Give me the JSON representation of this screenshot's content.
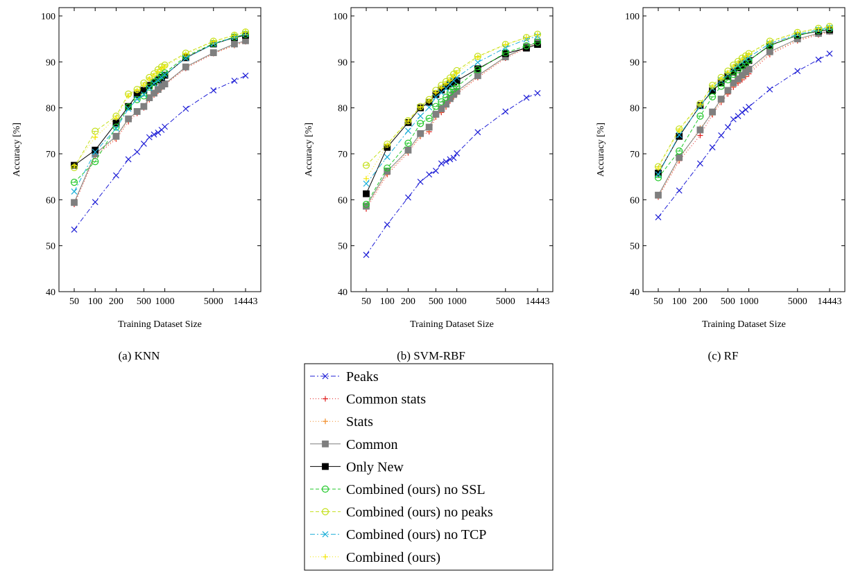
{
  "x_tick_labels": [
    "50",
    "100",
    "200",
    "500",
    "1000",
    "5000",
    "14443"
  ],
  "y_tick_labels": [
    "40",
    "50",
    "60",
    "70",
    "80",
    "90",
    "100"
  ],
  "chart_data": [
    {
      "type": "line",
      "caption": "(a) KNN",
      "xlabel": "Training Dataset Size",
      "ylabel": "Accuracy [%]",
      "xscale": "log",
      "xlim": [
        50,
        14443
      ],
      "ylim": [
        40,
        100
      ],
      "grid": true,
      "x": [
        50,
        100,
        200,
        300,
        400,
        500,
        600,
        700,
        800,
        900,
        1000,
        2000,
        5000,
        10000,
        14443
      ],
      "series": [
        {
          "name": "Peaks",
          "values": [
            53.5,
            59.5,
            65.3,
            68.8,
            70.4,
            72.2,
            73.6,
            74.2,
            74.6,
            75.2,
            75.9,
            79.8,
            83.8,
            85.9,
            87.0
          ]
        },
        {
          "name": "Common stats",
          "values": [
            59.0,
            69.5,
            73.2,
            77.0,
            78.8,
            80.0,
            81.8,
            82.8,
            83.6,
            84.4,
            85.0,
            88.6,
            91.8,
            93.6,
            94.4
          ]
        },
        {
          "name": "Stats",
          "values": [
            59.3,
            69.8,
            73.5,
            77.4,
            79.1,
            80.2,
            82.0,
            83.0,
            83.8,
            84.5,
            85.1,
            88.8,
            91.9,
            93.7,
            94.5
          ]
        },
        {
          "name": "Common",
          "values": [
            59.4,
            70.0,
            73.8,
            77.6,
            79.2,
            80.3,
            82.2,
            83.2,
            84.0,
            84.7,
            85.2,
            88.9,
            92.0,
            93.9,
            94.6
          ]
        },
        {
          "name": "Only New",
          "values": [
            67.5,
            70.8,
            76.7,
            80.3,
            82.9,
            83.8,
            84.9,
            85.6,
            86.1,
            86.6,
            87.1,
            90.9,
            93.9,
            95.3,
            95.8
          ]
        },
        {
          "name": "Combined (ours) no SSL",
          "values": [
            63.8,
            68.3,
            75.8,
            80.2,
            81.8,
            82.6,
            84.5,
            85.5,
            86.4,
            87.0,
            87.6,
            91.2,
            94.0,
            95.4,
            96.0
          ]
        },
        {
          "name": "Combined (ours) no peaks",
          "values": [
            67.0,
            74.9,
            78.2,
            83.0,
            84.0,
            85.4,
            86.6,
            87.4,
            88.3,
            88.9,
            89.3,
            91.9,
            94.5,
            95.8,
            96.5
          ]
        },
        {
          "name": "Combined (ours) no TCP",
          "values": [
            61.8,
            70.4,
            75.5,
            79.8,
            81.9,
            82.9,
            84.3,
            85.3,
            86.0,
            86.6,
            87.2,
            90.8,
            93.9,
            95.4,
            96.1
          ]
        },
        {
          "name": "Combined (ours)",
          "values": [
            67.4,
            73.6,
            77.8,
            82.6,
            83.8,
            85.0,
            86.3,
            87.1,
            87.9,
            88.6,
            89.0,
            91.7,
            94.4,
            95.8,
            96.5
          ]
        }
      ]
    },
    {
      "type": "line",
      "caption": "(b) SVM-RBF",
      "xlabel": "Training Dataset Size",
      "ylabel": "Accuracy [%]",
      "xscale": "log",
      "xlim": [
        50,
        14443
      ],
      "ylim": [
        40,
        100
      ],
      "grid": true,
      "x": [
        50,
        100,
        200,
        300,
        400,
        500,
        600,
        700,
        800,
        900,
        1000,
        2000,
        5000,
        10000,
        14443
      ],
      "series": [
        {
          "name": "Peaks",
          "values": [
            48.0,
            54.6,
            60.5,
            63.9,
            65.5,
            66.3,
            67.9,
            68.3,
            68.8,
            69.1,
            70.1,
            74.7,
            79.2,
            82.2,
            83.2
          ]
        },
        {
          "name": "Common stats",
          "values": [
            58.0,
            65.5,
            70.2,
            73.8,
            74.8,
            78.0,
            79.0,
            80.2,
            81.5,
            82.4,
            83.0,
            86.6,
            90.8,
            93.0,
            94.0
          ]
        },
        {
          "name": "Stats",
          "values": [
            58.4,
            65.8,
            70.5,
            74.0,
            75.2,
            78.3,
            79.4,
            80.5,
            81.8,
            82.6,
            83.2,
            86.8,
            91.0,
            93.2,
            94.2
          ]
        },
        {
          "name": "Common",
          "values": [
            58.6,
            66.2,
            70.8,
            74.4,
            75.8,
            78.6,
            79.8,
            80.8,
            82.0,
            82.9,
            83.6,
            87.0,
            91.1,
            93.3,
            94.3
          ]
        },
        {
          "name": "Only New",
          "values": [
            61.3,
            71.4,
            76.8,
            80.0,
            81.2,
            82.9,
            83.9,
            84.7,
            85.2,
            85.6,
            85.9,
            88.5,
            91.8,
            93.0,
            93.8
          ]
        },
        {
          "name": "Combined (ours) no SSL",
          "values": [
            59.0,
            66.9,
            72.3,
            76.6,
            77.7,
            80.3,
            81.3,
            82.3,
            83.4,
            84.1,
            84.6,
            88.3,
            92.0,
            93.5,
            94.3
          ]
        },
        {
          "name": "Combined (ours) no peaks",
          "values": [
            67.5,
            72.1,
            77.2,
            80.3,
            81.8,
            83.8,
            84.9,
            85.7,
            86.5,
            87.3,
            88.1,
            91.2,
            93.8,
            95.3,
            96.0
          ]
        },
        {
          "name": "Combined (ours) no TCP",
          "values": [
            63.5,
            69.3,
            75.0,
            78.2,
            80.1,
            82.3,
            83.3,
            84.2,
            85.1,
            85.9,
            86.6,
            89.9,
            93.1,
            94.9,
            95.6
          ]
        },
        {
          "name": "Combined (ours)",
          "values": [
            64.6,
            71.9,
            77.1,
            80.1,
            81.5,
            83.3,
            84.4,
            85.3,
            86.1,
            86.9,
            87.6,
            91.0,
            93.7,
            95.3,
            95.9
          ]
        }
      ]
    },
    {
      "type": "line",
      "caption": "(c) RF",
      "xlabel": "Training Dataset Size",
      "ylabel": "Accuracy [%]",
      "xscale": "log",
      "xlim": [
        50,
        14443
      ],
      "ylim": [
        40,
        100
      ],
      "grid": true,
      "x": [
        50,
        100,
        200,
        300,
        400,
        500,
        600,
        700,
        800,
        900,
        1000,
        2000,
        5000,
        10000,
        14443
      ],
      "series": [
        {
          "name": "Peaks",
          "values": [
            56.2,
            62.0,
            67.9,
            71.4,
            74.0,
            75.8,
            77.5,
            78.2,
            79.0,
            79.6,
            80.2,
            84.0,
            88.0,
            90.5,
            91.8
          ]
        },
        {
          "name": "Common stats",
          "values": [
            60.6,
            68.5,
            74.0,
            78.5,
            81.2,
            83.0,
            84.5,
            85.4,
            86.1,
            86.8,
            87.4,
            91.6,
            94.6,
            95.9,
            96.5
          ]
        },
        {
          "name": "Stats",
          "values": [
            60.8,
            68.8,
            75.6,
            78.8,
            81.6,
            83.5,
            85.0,
            85.9,
            86.6,
            87.3,
            87.9,
            91.9,
            94.8,
            96.1,
            96.6
          ]
        },
        {
          "name": "Common",
          "values": [
            61.0,
            69.2,
            75.2,
            79.1,
            81.9,
            83.8,
            85.4,
            86.3,
            87.1,
            87.8,
            88.4,
            92.2,
            95.0,
            96.2,
            96.7
          ]
        },
        {
          "name": "Only New",
          "values": [
            65.8,
            73.8,
            80.5,
            83.7,
            85.5,
            86.9,
            87.8,
            88.7,
            89.3,
            89.9,
            90.3,
            93.6,
            95.8,
            96.7,
            97.0
          ]
        },
        {
          "name": "Combined (ours) no SSL",
          "values": [
            64.8,
            70.6,
            78.2,
            82.4,
            84.7,
            86.1,
            87.3,
            88.3,
            89.1,
            89.7,
            90.3,
            93.5,
            95.8,
            96.8,
            97.2
          ]
        },
        {
          "name": "Combined (ours) no peaks",
          "values": [
            67.2,
            75.4,
            80.9,
            84.9,
            86.6,
            88.0,
            89.3,
            90.1,
            90.8,
            91.3,
            91.8,
            94.5,
            96.4,
            97.3,
            97.7
          ]
        },
        {
          "name": "Combined (ours) no TCP",
          "values": [
            65.5,
            74.1,
            80.3,
            84.2,
            86.0,
            87.3,
            88.5,
            89.3,
            90.0,
            90.6,
            91.0,
            94.0,
            96.0,
            97.0,
            97.4
          ]
        },
        {
          "name": "Combined (ours)",
          "values": [
            66.9,
            75.1,
            80.7,
            84.6,
            86.3,
            87.7,
            89.0,
            89.8,
            90.5,
            91.1,
            91.6,
            94.3,
            96.3,
            97.2,
            97.6
          ]
        }
      ]
    }
  ],
  "styles": [
    {
      "color": "#1f1fd6",
      "dash": "7,3,2,3",
      "marker": "x"
    },
    {
      "color": "#e01b1b",
      "dash": "1,3",
      "marker": "plus"
    },
    {
      "color": "#f08a24",
      "dash": "1,3",
      "marker": "plus"
    },
    {
      "color": "#7f7f7f",
      "dash": "",
      "marker": "square"
    },
    {
      "color": "#000000",
      "dash": "",
      "marker": "square"
    },
    {
      "color": "#22c92a",
      "dash": "5,3",
      "marker": "circle"
    },
    {
      "color": "#c4e01b",
      "dash": "5,3",
      "marker": "circle"
    },
    {
      "color": "#1aaed8",
      "dash": "7,3,2,3",
      "marker": "x"
    },
    {
      "color": "#f2e500",
      "dash": "1,3",
      "marker": "plus"
    }
  ]
}
